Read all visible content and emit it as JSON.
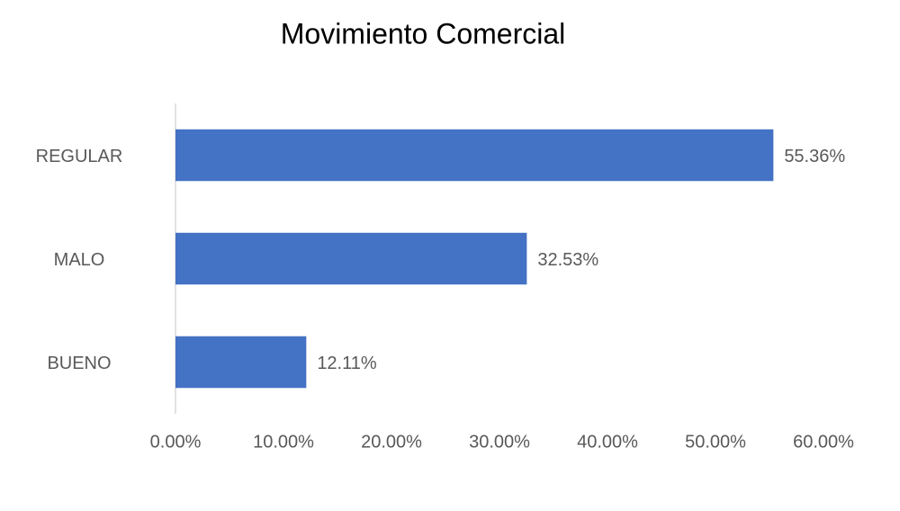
{
  "chart_data": {
    "type": "bar",
    "orientation": "horizontal",
    "title": "Movimiento Comercial",
    "categories": [
      "REGULAR",
      "MALO",
      "BUENO"
    ],
    "values": [
      55.36,
      32.53,
      12.11
    ],
    "value_labels": [
      "55.36%",
      "32.53%",
      "12.11%"
    ],
    "color": "#4472c4",
    "xlim": [
      0,
      60
    ],
    "xticks": [
      {
        "value": 0,
        "label": "0.00%"
      },
      {
        "value": 10,
        "label": "10.00%"
      },
      {
        "value": 20,
        "label": "20.00%"
      },
      {
        "value": 30,
        "label": "30.00%"
      },
      {
        "value": 40,
        "label": "40.00%"
      },
      {
        "value": 50,
        "label": "50.00%"
      },
      {
        "value": 60,
        "label": "60.00%"
      }
    ],
    "grid": false
  }
}
